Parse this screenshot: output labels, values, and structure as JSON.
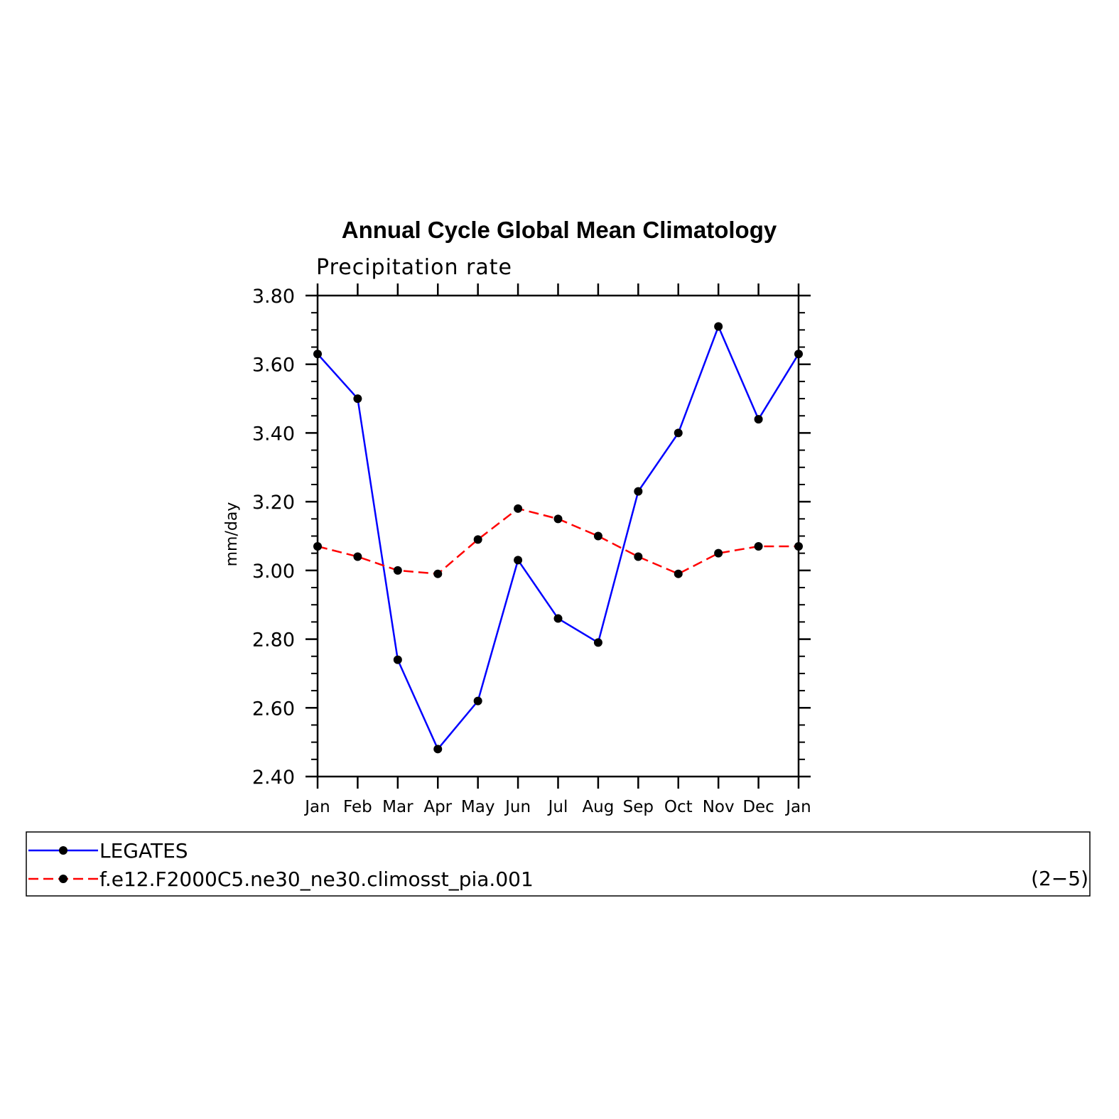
{
  "chart_data": {
    "type": "line",
    "title": "Annual Cycle Global Mean Climatology",
    "subtitle": "Precipitation rate",
    "ylabel": "mm/day",
    "xlabel": "",
    "categories": [
      "Jan",
      "Feb",
      "Mar",
      "Apr",
      "May",
      "Jun",
      "Jul",
      "Aug",
      "Sep",
      "Oct",
      "Nov",
      "Dec",
      "Jan"
    ],
    "ylim": [
      2.4,
      3.8
    ],
    "yticks": [
      "2.40",
      "2.60",
      "2.80",
      "3.00",
      "3.20",
      "3.40",
      "3.60",
      "3.80"
    ],
    "grid": false,
    "legend_position": "bottom",
    "series": [
      {
        "name": "LEGATES",
        "color": "#0000ff",
        "dash": "solid",
        "values": [
          3.63,
          3.5,
          2.74,
          2.48,
          2.62,
          3.03,
          2.86,
          2.79,
          3.23,
          3.4,
          3.71,
          3.44,
          3.63
        ]
      },
      {
        "name": "f.e12.F2000C5.ne30_ne30.climosst_pia.001",
        "color": "#ff0000",
        "dash": "dashed",
        "values": [
          3.07,
          3.04,
          3.0,
          2.99,
          3.09,
          3.18,
          3.15,
          3.1,
          3.04,
          2.99,
          3.05,
          3.07,
          3.07
        ]
      }
    ]
  },
  "panel_label": "(2−5)"
}
